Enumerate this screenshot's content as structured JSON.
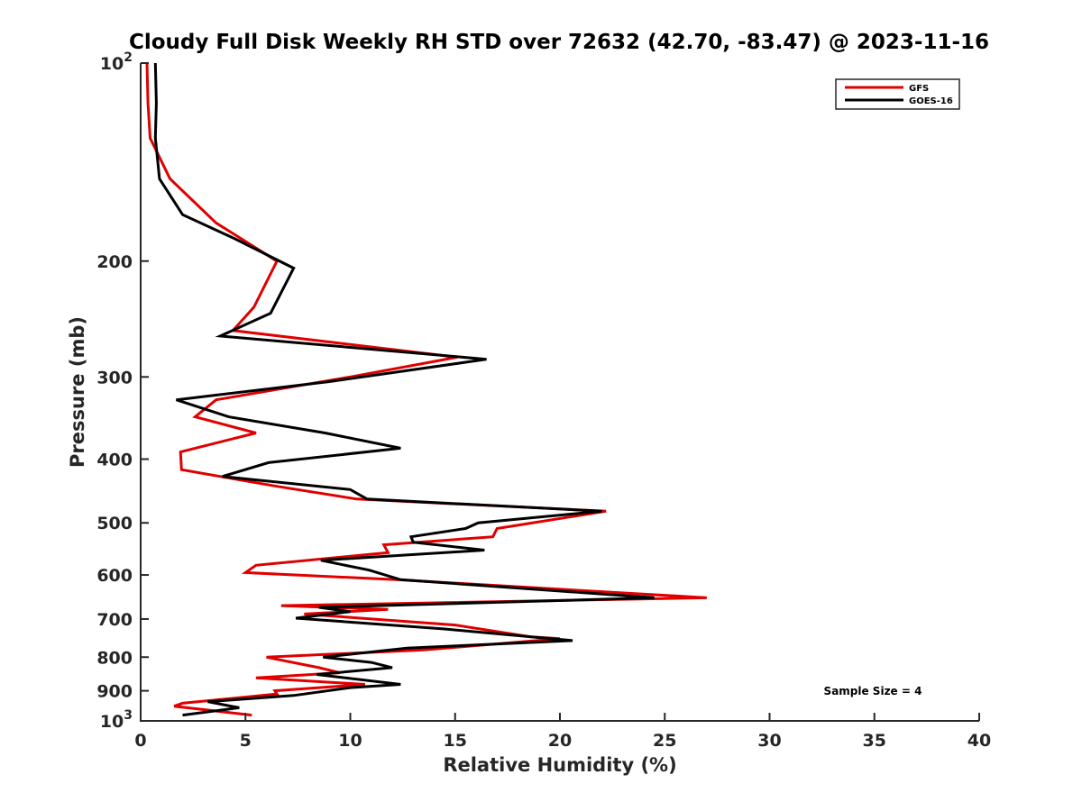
{
  "chart_data": {
    "type": "line",
    "title": "Cloudy Full Disk Weekly RH STD over 72632 (42.70, -83.47) @ 2023-11-16",
    "xlabel": "Relative Humidity (%)",
    "ylabel": "Pressure (mb)",
    "xlim": [
      0,
      40
    ],
    "ylim": [
      100,
      1000
    ],
    "yscale": "log",
    "yreversed": true,
    "grid": false,
    "legend_position": "top-right",
    "x_ticks": [
      0,
      5,
      10,
      15,
      20,
      25,
      30,
      35,
      40
    ],
    "x_tick_labels": [
      "0",
      "5",
      "10",
      "15",
      "20",
      "25",
      "30",
      "35",
      "40"
    ],
    "y_ticks": [
      100,
      200,
      300,
      400,
      500,
      600,
      700,
      800,
      900,
      1000
    ],
    "y_tick_labels": [
      {
        "base": "10",
        "exp": "2"
      },
      {
        "base": "200",
        "exp": ""
      },
      {
        "base": "300",
        "exp": ""
      },
      {
        "base": "400",
        "exp": ""
      },
      {
        "base": "500",
        "exp": ""
      },
      {
        "base": "600",
        "exp": ""
      },
      {
        "base": "700",
        "exp": ""
      },
      {
        "base": "800",
        "exp": ""
      },
      {
        "base": "900",
        "exp": ""
      },
      {
        "base": "10",
        "exp": "3"
      }
    ],
    "annotation": "Sample Size = 4",
    "series": [
      {
        "name": "GFS",
        "color": "#e00000",
        "points": [
          [
            0.3,
            100
          ],
          [
            0.35,
            115
          ],
          [
            0.45,
            130
          ],
          [
            1.4,
            150
          ],
          [
            3.6,
            175
          ],
          [
            6.5,
            200
          ],
          [
            5.4,
            235
          ],
          [
            4.4,
            255
          ],
          [
            15.1,
            280
          ],
          [
            10.0,
            300
          ],
          [
            3.6,
            325
          ],
          [
            2.6,
            345
          ],
          [
            5.5,
            365
          ],
          [
            1.9,
            390
          ],
          [
            1.95,
            415
          ],
          [
            6.5,
            440
          ],
          [
            10.3,
            460
          ],
          [
            22.2,
            480
          ],
          [
            17.0,
            510
          ],
          [
            16.8,
            525
          ],
          [
            11.6,
            540
          ],
          [
            11.8,
            555
          ],
          [
            5.5,
            580
          ],
          [
            5.0,
            595
          ],
          [
            12.2,
            610
          ],
          [
            27.0,
            650
          ],
          [
            6.7,
            668
          ],
          [
            11.8,
            677
          ],
          [
            7.8,
            688
          ],
          [
            15.0,
            715
          ],
          [
            18.6,
            745
          ],
          [
            20.0,
            750
          ],
          [
            13.5,
            780
          ],
          [
            6.0,
            800
          ],
          [
            8.5,
            830
          ],
          [
            9.5,
            845
          ],
          [
            5.5,
            860
          ],
          [
            10.7,
            880
          ],
          [
            6.4,
            900
          ],
          [
            6.5,
            910
          ],
          [
            2.0,
            940
          ],
          [
            1.6,
            950
          ],
          [
            5.3,
            980
          ]
        ]
      },
      {
        "name": "GOES-16",
        "color": "#000000",
        "points": [
          [
            0.7,
            100
          ],
          [
            0.75,
            115
          ],
          [
            0.7,
            130
          ],
          [
            0.9,
            150
          ],
          [
            2.0,
            170
          ],
          [
            4.5,
            185
          ],
          [
            7.3,
            205
          ],
          [
            6.2,
            240
          ],
          [
            3.8,
            260
          ],
          [
            16.5,
            282
          ],
          [
            9.0,
            305
          ],
          [
            1.7,
            325
          ],
          [
            4.2,
            345
          ],
          [
            8.8,
            365
          ],
          [
            12.4,
            385
          ],
          [
            6.1,
            405
          ],
          [
            3.9,
            425
          ],
          [
            10.0,
            445
          ],
          [
            10.8,
            460
          ],
          [
            22.0,
            480
          ],
          [
            16.1,
            500
          ],
          [
            15.5,
            510
          ],
          [
            12.9,
            525
          ],
          [
            13.0,
            535
          ],
          [
            16.4,
            550
          ],
          [
            8.6,
            570
          ],
          [
            10.9,
            590
          ],
          [
            12.4,
            610
          ],
          [
            24.5,
            650
          ],
          [
            8.5,
            672
          ],
          [
            10.0,
            682
          ],
          [
            7.4,
            698
          ],
          [
            14.5,
            725
          ],
          [
            20.6,
            755
          ],
          [
            12.7,
            775
          ],
          [
            8.7,
            800
          ],
          [
            11.0,
            815
          ],
          [
            12.0,
            830
          ],
          [
            8.4,
            850
          ],
          [
            12.4,
            880
          ],
          [
            10.0,
            890
          ],
          [
            7.3,
            915
          ],
          [
            3.2,
            935
          ],
          [
            4.7,
            955
          ],
          [
            2.0,
            980
          ]
        ]
      }
    ]
  }
}
